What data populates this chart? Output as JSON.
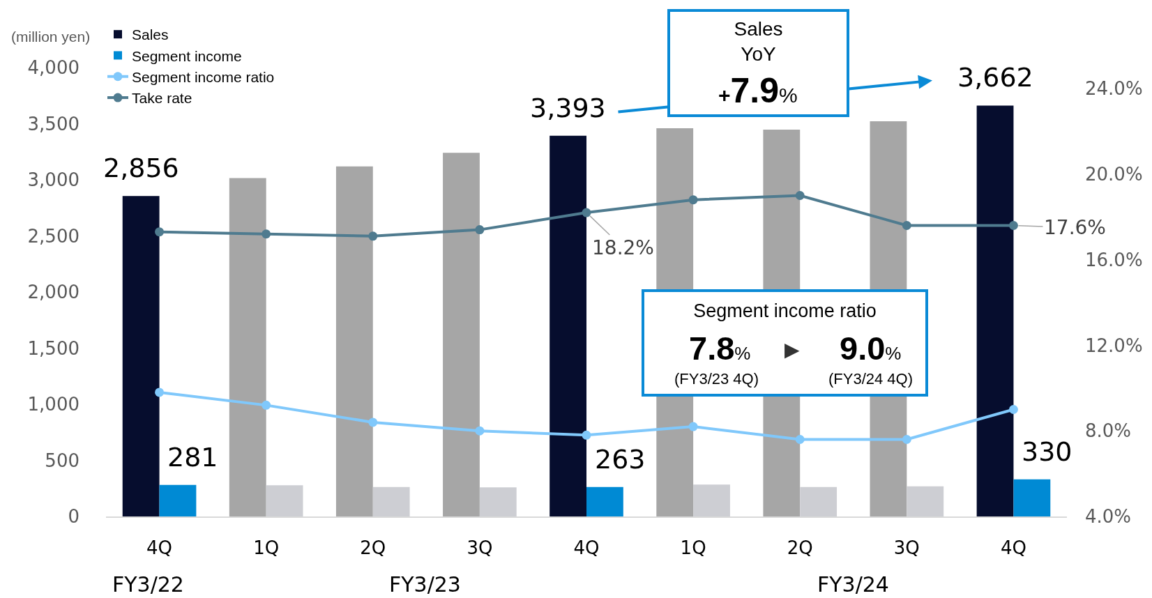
{
  "chart_data": {
    "type": "bar",
    "categories": [
      "4Q",
      "1Q",
      "2Q",
      "3Q",
      "4Q",
      "1Q",
      "2Q",
      "3Q",
      "4Q"
    ],
    "ylabel": "(million yen)",
    "ylim": [
      0,
      4000
    ],
    "yticks": [
      0,
      500,
      {
        "value": 1000,
        "label": "1,000"
      },
      {
        "value": 1500,
        "label": "1,500"
      },
      {
        "value": 2000,
        "label": "2,000"
      },
      {
        "value": 2500,
        "label": "2,500"
      },
      {
        "value": 3000,
        "label": "3,000"
      },
      {
        "value": 3500,
        "label": "3,500"
      },
      {
        "value": 4000,
        "label": "4,000"
      }
    ],
    "y2lim": [
      4,
      24
    ],
    "y2ticks": [
      {
        "value": 4,
        "label": "4.0%"
      },
      {
        "value": 8,
        "label": "8.0%"
      },
      {
        "value": 12,
        "label": "12.0%"
      },
      {
        "value": 16,
        "label": "16.0%"
      },
      {
        "value": 20,
        "label": "20.0%"
      },
      {
        "value": 24,
        "label": "24.0%"
      }
    ],
    "series": [
      {
        "name": "Sales",
        "colors": [
          "#060d2e",
          "#a6a6a6",
          "#a6a6a6",
          "#a6a6a6",
          "#060d2e",
          "#a6a6a6",
          "#a6a6a6",
          "#a6a6a6",
          "#060d2e"
        ],
        "values": [
          2856,
          3015,
          3119,
          3240,
          3393,
          3459,
          3447,
          3521,
          3662
        ],
        "value_labels": [
          "2,856",
          null,
          null,
          null,
          "3,393",
          null,
          null,
          null,
          "3,662"
        ]
      },
      {
        "name": "Segment income",
        "colors": [
          "#008ad4",
          "#cdced3",
          "#cdced3",
          "#cdced3",
          "#008ad4",
          "#cdced3",
          "#cdced3",
          "#cdced3",
          "#008ad4"
        ],
        "values": [
          281,
          278,
          262,
          259,
          263,
          284,
          262,
          268,
          330
        ],
        "value_labels": [
          "281",
          null,
          null,
          null,
          "263",
          null,
          null,
          null,
          "330"
        ]
      },
      {
        "name": "Segment income ratio",
        "type": "line",
        "axis": "y2",
        "color": "#80c8fb",
        "values": [
          9.8,
          9.2,
          8.4,
          8.0,
          7.8,
          8.2,
          7.6,
          7.6,
          9.0
        ]
      },
      {
        "name": "Take rate",
        "type": "line",
        "axis": "y2",
        "color": "#4f7b8f",
        "values": [
          17.3,
          17.2,
          17.1,
          17.4,
          18.2,
          18.8,
          19.0,
          17.6,
          17.6
        ],
        "value_labels": [
          null,
          null,
          null,
          null,
          "18.2%",
          null,
          null,
          null,
          "17.6%"
        ]
      }
    ],
    "marker": "circle",
    "legend": "top left",
    "annotations": [
      "Sales\nYoY\n+7.9%",
      "Segment income ratio",
      "7.8%",
      "▶",
      "9.0%",
      "(FY3/23 4Q)",
      "(FY3/24 4Q)",
      "FY3/22",
      "FY3/23",
      "FY3/24"
    ]
  }
}
